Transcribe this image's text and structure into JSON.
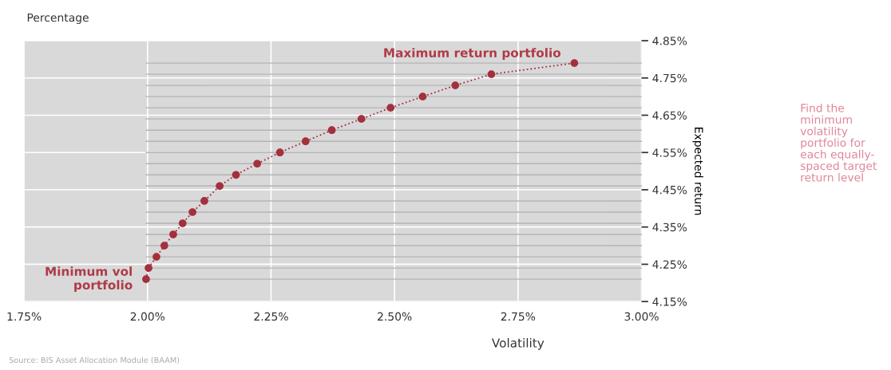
{
  "chart_data": {
    "type": "line",
    "title": "Percentage",
    "xlabel": "Volatility",
    "ylabel": "Expected return",
    "x": [
      1.997,
      2.002,
      2.018,
      2.034,
      2.052,
      2.071,
      2.091,
      2.115,
      2.146,
      2.179,
      2.222,
      2.268,
      2.32,
      2.373,
      2.433,
      2.492,
      2.557,
      2.623,
      2.696,
      2.864
    ],
    "series": [
      {
        "color": "#a3303c",
        "values": [
          4.21,
          4.24,
          4.27,
          4.3,
          4.33,
          4.36,
          4.39,
          4.42,
          4.46,
          4.49,
          4.52,
          4.55,
          4.58,
          4.61,
          4.64,
          4.67,
          4.7,
          4.73,
          4.76,
          4.79
        ]
      }
    ],
    "marker": "circle",
    "line_style": "dotted",
    "grid": true,
    "xlim": [
      1.75,
      3.0
    ],
    "ylim": [
      4.15,
      4.85
    ],
    "xticks": [
      {
        "value": 1.75,
        "label": "1.75%"
      },
      {
        "value": 2.0,
        "label": "2.00%"
      },
      {
        "value": 2.25,
        "label": "2.25%"
      },
      {
        "value": 2.5,
        "label": "2.50%"
      },
      {
        "value": 2.75,
        "label": "2.75%"
      },
      {
        "value": 3.0,
        "label": "3.00%"
      }
    ],
    "yticks": [
      {
        "value": 4.15,
        "label": "4.15%"
      },
      {
        "value": 4.25,
        "label": "4.25%"
      },
      {
        "value": 4.35,
        "label": "4.35%"
      },
      {
        "value": 4.45,
        "label": "4.45%"
      },
      {
        "value": 4.55,
        "label": "4.55%"
      },
      {
        "value": 4.65,
        "label": "4.65%"
      },
      {
        "value": 4.75,
        "label": "4.75%"
      },
      {
        "value": 4.85,
        "label": "4.85%"
      }
    ],
    "ref_lines": [
      {
        "axis": "y",
        "value": 4.21,
        "color": "#b4b4b4"
      },
      {
        "axis": "y",
        "value": 4.24,
        "color": "#b4b4b4"
      },
      {
        "axis": "y",
        "value": 4.27,
        "color": "#b4b4b4"
      },
      {
        "axis": "y",
        "value": 4.3,
        "color": "#b4b4b4"
      },
      {
        "axis": "y",
        "value": 4.33,
        "color": "#b4b4b4"
      },
      {
        "axis": "y",
        "value": 4.36,
        "color": "#b4b4b4"
      },
      {
        "axis": "y",
        "value": 4.39,
        "color": "#b4b4b4"
      },
      {
        "axis": "y",
        "value": 4.42,
        "color": "#b4b4b4"
      },
      {
        "axis": "y",
        "value": 4.46,
        "color": "#b4b4b4"
      },
      {
        "axis": "y",
        "value": 4.49,
        "color": "#b4b4b4"
      },
      {
        "axis": "y",
        "value": 4.52,
        "color": "#b4b4b4"
      },
      {
        "axis": "y",
        "value": 4.55,
        "color": "#b4b4b4"
      },
      {
        "axis": "y",
        "value": 4.58,
        "color": "#b4b4b4"
      },
      {
        "axis": "y",
        "value": 4.61,
        "color": "#b4b4b4"
      },
      {
        "axis": "y",
        "value": 4.64,
        "color": "#b4b4b4"
      },
      {
        "axis": "y",
        "value": 4.67,
        "color": "#b4b4b4"
      },
      {
        "axis": "y",
        "value": 4.7,
        "color": "#b4b4b4"
      },
      {
        "axis": "y",
        "value": 4.73,
        "color": "#b4b4b4"
      },
      {
        "axis": "y",
        "value": 4.76,
        "color": "#b4b4b4"
      },
      {
        "axis": "y",
        "value": 4.79,
        "color": "#b4b4b4"
      }
    ],
    "annotations": [
      {
        "text": "Maximum return portfolio",
        "x": 2.864,
        "y": 4.79
      },
      {
        "text": "Minimum vol\nportfolio",
        "x": 1.997,
        "y": 4.21
      },
      "Find the\nminimum\nvolatility\nportfolio for\neach equally-\nspaced target\nreturn level",
      "Source: BIS Asset Allocation Module (BAAM)"
    ]
  }
}
